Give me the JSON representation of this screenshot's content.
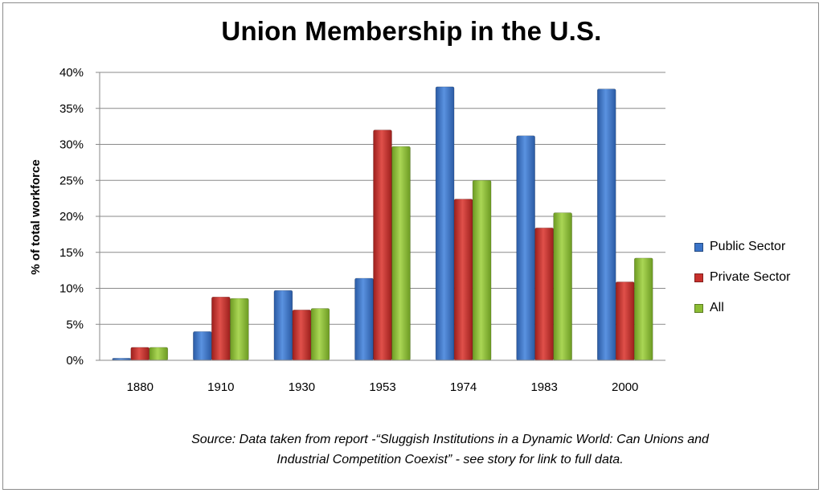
{
  "chart_data": {
    "type": "bar",
    "title": "Union Membership in the U.S.",
    "ylabel": "% of total workforce",
    "xlabel": "",
    "categories": [
      "1880",
      "1910",
      "1930",
      "1953",
      "1974",
      "1983",
      "2000"
    ],
    "series": [
      {
        "name": "Public Sector",
        "color": "#3a74c8",
        "values": [
          0.3,
          4.0,
          9.7,
          11.4,
          38.0,
          31.2,
          37.7
        ]
      },
      {
        "name": "Private Sector",
        "color": "#c8302c",
        "values": [
          1.8,
          8.8,
          7.0,
          32.0,
          22.4,
          18.4,
          10.9
        ]
      },
      {
        "name": "All",
        "color": "#8cbd34",
        "values": [
          1.8,
          8.6,
          7.2,
          29.7,
          25.0,
          20.5,
          14.2
        ]
      }
    ],
    "ylim": [
      0,
      40
    ],
    "yticks": [
      0,
      5,
      10,
      15,
      20,
      25,
      30,
      35,
      40
    ],
    "ytick_labels": [
      "0%",
      "5%",
      "10%",
      "15%",
      "20%",
      "25%",
      "30%",
      "35%",
      "40%"
    ],
    "grid": true,
    "legend_position": "right"
  },
  "source_note": {
    "line1": "Source: Data taken from report -“Sluggish Institutions in a Dynamic World: Can Unions and",
    "line2": "Industrial Competition Coexist” - see story for link to full data."
  }
}
